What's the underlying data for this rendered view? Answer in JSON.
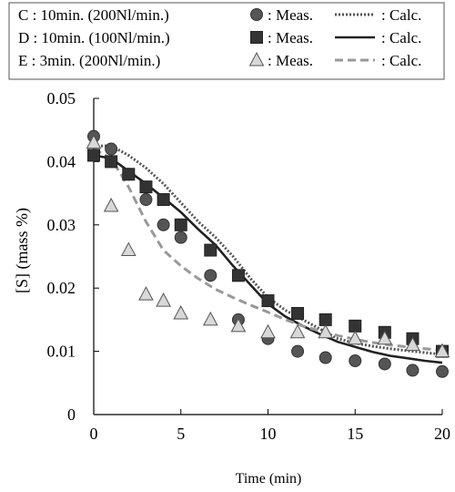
{
  "chart_data": {
    "type": "scatter",
    "xlabel": "Time (min)",
    "ylabel": "[S] (mass %)",
    "xlim": [
      0,
      20
    ],
    "ylim": [
      0,
      0.05
    ],
    "xticks": [
      "0",
      "5",
      "10",
      "15",
      "20"
    ],
    "yticks": [
      "0",
      "0.01",
      "0.02",
      "0.03",
      "0.04",
      "0.05"
    ],
    "grid": false,
    "legend_position": "top",
    "series": [
      {
        "name": "C : 10min. (200Nl/min.)",
        "kind": "measured",
        "marker": "circle",
        "color": "#555555",
        "meas_label": ": Meas.",
        "x": [
          0,
          1,
          2,
          3,
          4,
          5,
          6.7,
          8.3,
          10,
          11.7,
          13.3,
          15,
          16.7,
          18.3,
          20
        ],
        "y": [
          0.044,
          0.042,
          0.038,
          0.034,
          0.03,
          0.028,
          0.022,
          0.015,
          0.012,
          0.01,
          0.009,
          0.0085,
          0.008,
          0.007,
          0.0068
        ]
      },
      {
        "name": "D : 10min. (100Nl/min.)",
        "kind": "measured",
        "marker": "square",
        "color": "#333333",
        "meas_label": ": Meas.",
        "x": [
          0,
          1,
          2,
          3,
          4,
          5,
          6.7,
          8.3,
          10,
          11.7,
          13.3,
          15,
          16.7,
          18.3,
          20
        ],
        "y": [
          0.041,
          0.04,
          0.038,
          0.036,
          0.034,
          0.03,
          0.026,
          0.022,
          0.018,
          0.016,
          0.015,
          0.014,
          0.013,
          0.012,
          0.01
        ]
      },
      {
        "name": "E : 3min. (200Nl/min.)",
        "kind": "measured",
        "marker": "triangle",
        "color": "#d8d8d8",
        "meas_label": ": Meas.",
        "x": [
          0,
          1,
          2,
          3,
          4,
          5,
          6.7,
          8.3,
          10,
          11.7,
          13.3,
          15,
          16.7,
          18.3,
          20
        ],
        "y": [
          0.043,
          0.033,
          0.026,
          0.019,
          0.018,
          0.016,
          0.015,
          0.014,
          0.013,
          0.013,
          0.013,
          0.012,
          0.012,
          0.011,
          0.01
        ]
      },
      {
        "name": "C : 10min. (200Nl/min.)",
        "kind": "calculated",
        "line_style": "dotted",
        "color": "#555555",
        "calc_label": ": Calc.",
        "x": [
          0,
          1,
          2,
          3,
          4,
          5,
          6,
          7,
          8,
          9,
          10,
          11,
          12,
          13,
          14,
          15,
          16,
          17,
          18,
          19,
          20
        ],
        "y": [
          0.0425,
          0.0425,
          0.041,
          0.039,
          0.0365,
          0.0335,
          0.0305,
          0.028,
          0.025,
          0.0215,
          0.0185,
          0.0165,
          0.015,
          0.0135,
          0.012,
          0.0113,
          0.0108,
          0.0104,
          0.0101,
          0.0098,
          0.0095
        ]
      },
      {
        "name": "D : 10min. (100Nl/min.)",
        "kind": "calculated",
        "line_style": "solid",
        "color": "#222222",
        "calc_label": ": Calc.",
        "x": [
          0,
          1,
          2,
          3,
          4,
          5,
          6,
          7,
          8,
          9,
          10,
          11,
          12,
          13,
          14,
          15,
          16,
          17,
          18,
          19,
          20
        ],
        "y": [
          0.041,
          0.0405,
          0.0385,
          0.0365,
          0.0343,
          0.032,
          0.0293,
          0.0268,
          0.0235,
          0.0205,
          0.0175,
          0.0155,
          0.014,
          0.0127,
          0.0115,
          0.0107,
          0.0099,
          0.0093,
          0.0089,
          0.0085,
          0.0082
        ]
      },
      {
        "name": "E : 3min. (200Nl/min.)",
        "kind": "calculated",
        "line_style": "dashed",
        "color": "#999999",
        "calc_label": ": Calc.",
        "x": [
          0,
          1,
          2,
          3,
          4,
          5,
          6,
          7,
          8,
          9,
          10,
          11,
          12,
          13,
          14,
          15,
          16,
          17,
          18,
          19,
          20
        ],
        "y": [
          0.042,
          0.0405,
          0.036,
          0.0305,
          0.026,
          0.0235,
          0.0215,
          0.0198,
          0.0185,
          0.0173,
          0.0162,
          0.015,
          0.014,
          0.0132,
          0.0125,
          0.0119,
          0.0114,
          0.011,
          0.0107,
          0.0104,
          0.0102
        ]
      }
    ]
  }
}
